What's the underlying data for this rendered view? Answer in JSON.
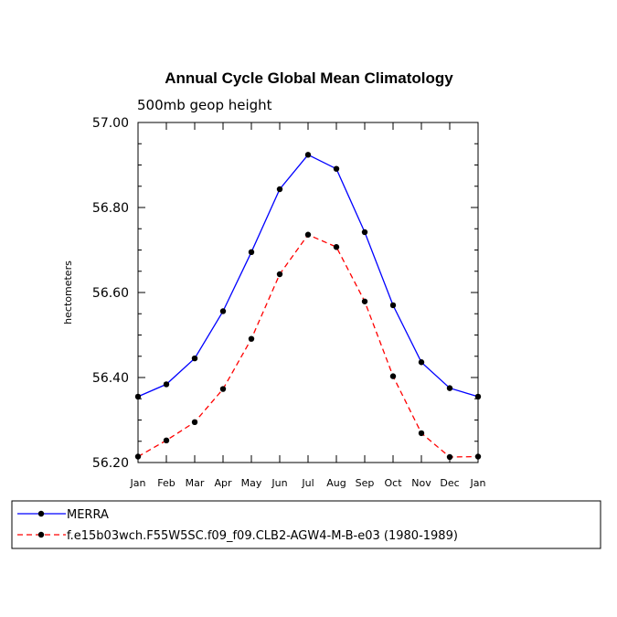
{
  "chart_data": {
    "type": "line",
    "title": "Annual Cycle Global Mean Climatology",
    "subtitle": "500mb geop height",
    "xlabel": "",
    "ylabel": "hectometers",
    "categories": [
      "Jan",
      "Feb",
      "Mar",
      "Apr",
      "May",
      "Jun",
      "Jul",
      "Aug",
      "Sep",
      "Oct",
      "Nov",
      "Dec",
      "Jan"
    ],
    "ylim": [
      56.2,
      57.0
    ],
    "yticks": [
      "56.20",
      "56.40",
      "56.60",
      "56.80",
      "57.00"
    ],
    "grid": false,
    "legend_position": "bottom",
    "series": [
      {
        "name": "MERRA",
        "color": "#0000ff",
        "dash": "solid",
        "values": [
          56.355,
          56.384,
          56.445,
          56.556,
          56.695,
          56.843,
          56.924,
          56.891,
          56.742,
          56.57,
          56.436,
          56.375,
          56.355
        ]
      },
      {
        "name": "f.e15b03wch.F55W5SC.f09_f09.CLB2-AGW4-M-B-e03 (1980-1989)",
        "color": "#ff0000",
        "dash": "dashed",
        "values": [
          56.214,
          56.252,
          56.295,
          56.373,
          56.491,
          56.643,
          56.736,
          56.707,
          56.579,
          56.403,
          56.269,
          56.213,
          56.214
        ]
      }
    ]
  }
}
